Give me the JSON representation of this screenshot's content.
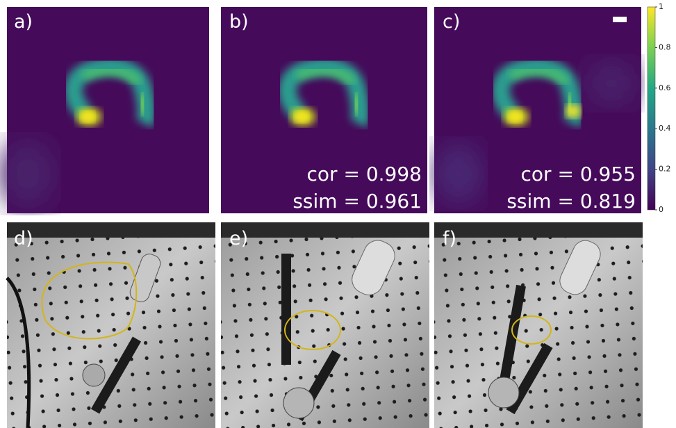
{
  "panels": [
    {
      "label": "a)"
    },
    {
      "label": "b)",
      "cor": "cor = 0.998",
      "ssim": "ssim = 0.961"
    },
    {
      "label": "c)",
      "cor": "cor = 0.955",
      "ssim": "ssim = 0.819"
    },
    {
      "label": "d)"
    },
    {
      "label": "e)"
    },
    {
      "label": "f)"
    }
  ],
  "colorbar": {
    "lim": [
      0,
      1
    ],
    "ticks": [
      0,
      0.2,
      0.4,
      0.6,
      0.8,
      1
    ]
  }
}
